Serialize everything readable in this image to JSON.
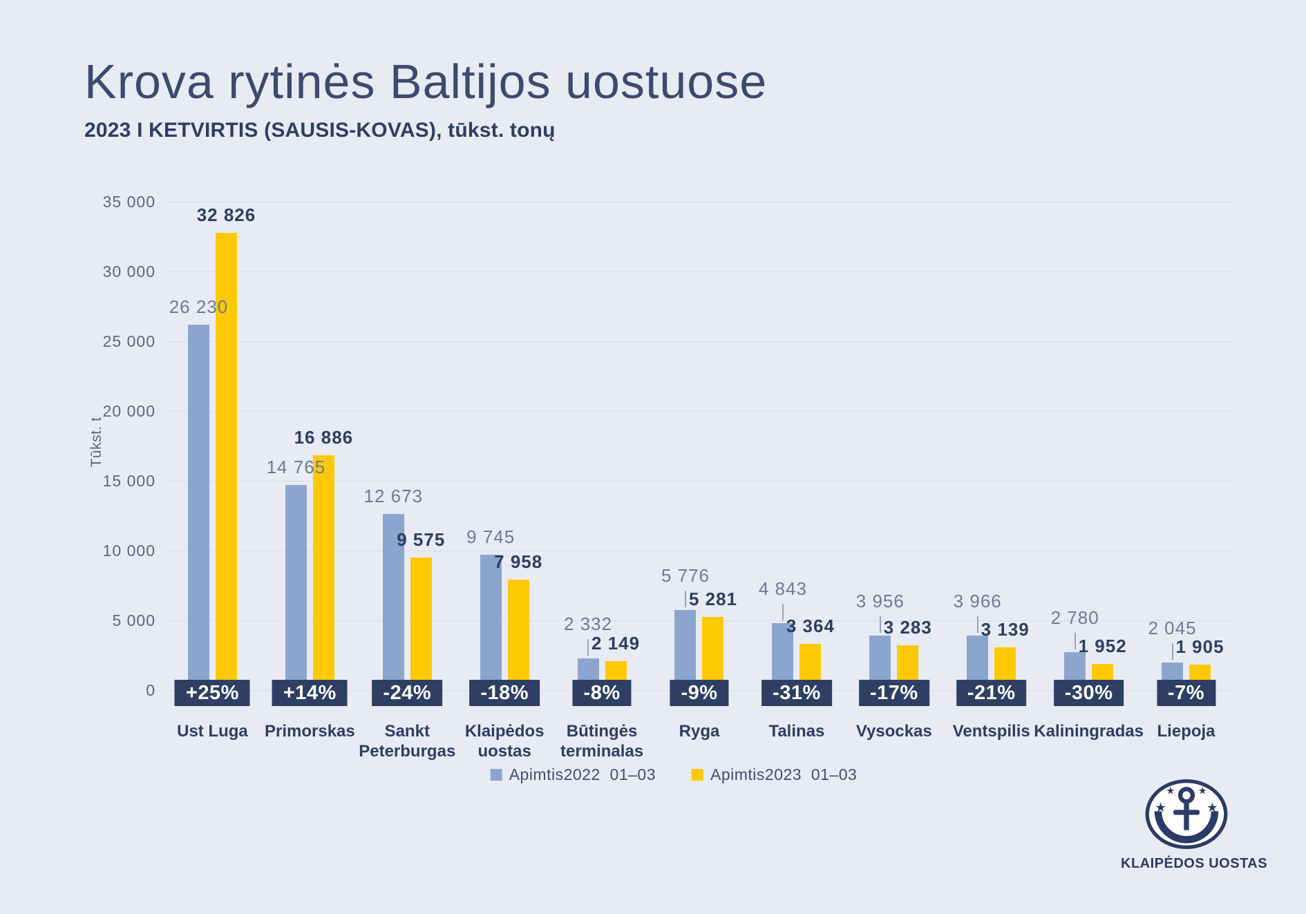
{
  "title": "Krova rytinės Baltijos uostuose",
  "subtitle": "2023 I KETVIRTIS (SAUSIS-KOVAS), tūkst. tonų",
  "colors": {
    "background": "#e8ebf3",
    "bar_2022": "#8ca5ce",
    "bar_2023": "#ffc805",
    "badge_background": "#2e3f63",
    "badge_text": "#ffffff",
    "gridline": "#d8dce8",
    "title_text": "#3d4a6e",
    "value_2022_text": "#6e7a94",
    "value_2023_text": "#2e3d63",
    "axis_text": "#5c6680",
    "logo_navy": "#2b3a66"
  },
  "y_axis": {
    "label": "Tūkst. t",
    "ticks": [
      "35 000",
      "30 000",
      "25 000",
      "20 000",
      "15 000",
      "10 000",
      "5 000",
      "0"
    ]
  },
  "legend": {
    "items": [
      {
        "label": "Apimtis2022  01–03",
        "color": "#8ca5ce"
      },
      {
        "label": "Apimtis2023  01–03",
        "color": "#ffc805"
      }
    ]
  },
  "footer_logo": {
    "caption": "KLAIPĖDOS UOSTAS"
  },
  "chart_data": {
    "type": "bar",
    "title": "Krova rytinės Baltijos uostuose",
    "subtitle": "2023 I KETVIRTIS (SAUSIS-KOVAS), tūkst. tonų",
    "ylabel": "Tūkst. t",
    "xlabel": "",
    "ylim": [
      0,
      35000
    ],
    "y_tick_step": 5000,
    "grid": "horizontal",
    "legend_position": "bottom",
    "categories": [
      "Ust Luga",
      "Primorskas",
      "Sankt\nPeterburgas",
      "Klaipėdos\nuostas",
      "Būtingės\nterminalas",
      "Ryga",
      "Talinas",
      "Vysockas",
      "Ventspilis",
      "Kaliningradas",
      "Liepoja"
    ],
    "series": [
      {
        "name": "Apimtis2022  01–03",
        "color": "#8ca5ce",
        "values": [
          26230,
          14765,
          12673,
          9745,
          2332,
          5776,
          4843,
          3956,
          3966,
          2780,
          2045
        ]
      },
      {
        "name": "Apimtis2023  01–03",
        "color": "#ffc805",
        "values": [
          32826,
          16886,
          9575,
          7958,
          2149,
          5281,
          3364,
          3283,
          3139,
          1952,
          1905
        ]
      }
    ],
    "change_badges": [
      "+25%",
      "+14%",
      "-24%",
      "-18%",
      "-8%",
      "-9%",
      "-31%",
      "-17%",
      "-21%",
      "-30%",
      "-7%"
    ]
  }
}
